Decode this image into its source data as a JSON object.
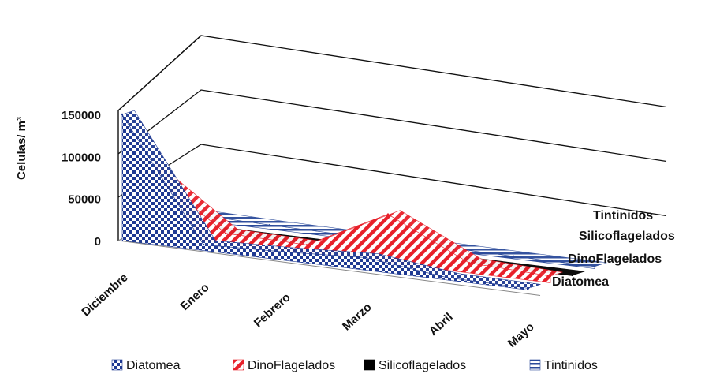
{
  "chart_data": {
    "type": "area",
    "title": "",
    "xlabel": "",
    "ylabel": "Celulas/ m³",
    "ylim": [
      0,
      150000
    ],
    "yticks": [
      "0",
      "50000",
      "100000",
      "150000"
    ],
    "categories": [
      "Diciembre",
      "Enero",
      "Febrero",
      "Marzo",
      "Abril",
      "Mayo"
    ],
    "grid": true,
    "legend_position": "bottom",
    "series": [
      {
        "name": "Diatomea",
        "values": [
          150000,
          7000,
          10000,
          15000,
          3000,
          2000
        ],
        "color": "#1f3a93",
        "pattern": "checker"
      },
      {
        "name": "DinoFlagelados",
        "values": [
          80000,
          12000,
          10000,
          58000,
          12000,
          8000
        ],
        "color": "#e8202a",
        "pattern": "diagonal"
      },
      {
        "name": "Silicoflagelados",
        "values": [
          1000,
          500,
          500,
          500,
          500,
          500
        ],
        "color": "#000000",
        "pattern": "solid"
      },
      {
        "name": "Tintinidos",
        "values": [
          7000,
          5000,
          4000,
          4000,
          3000,
          2500
        ],
        "color": "#2b4a9a",
        "pattern": "horizontal"
      }
    ]
  }
}
